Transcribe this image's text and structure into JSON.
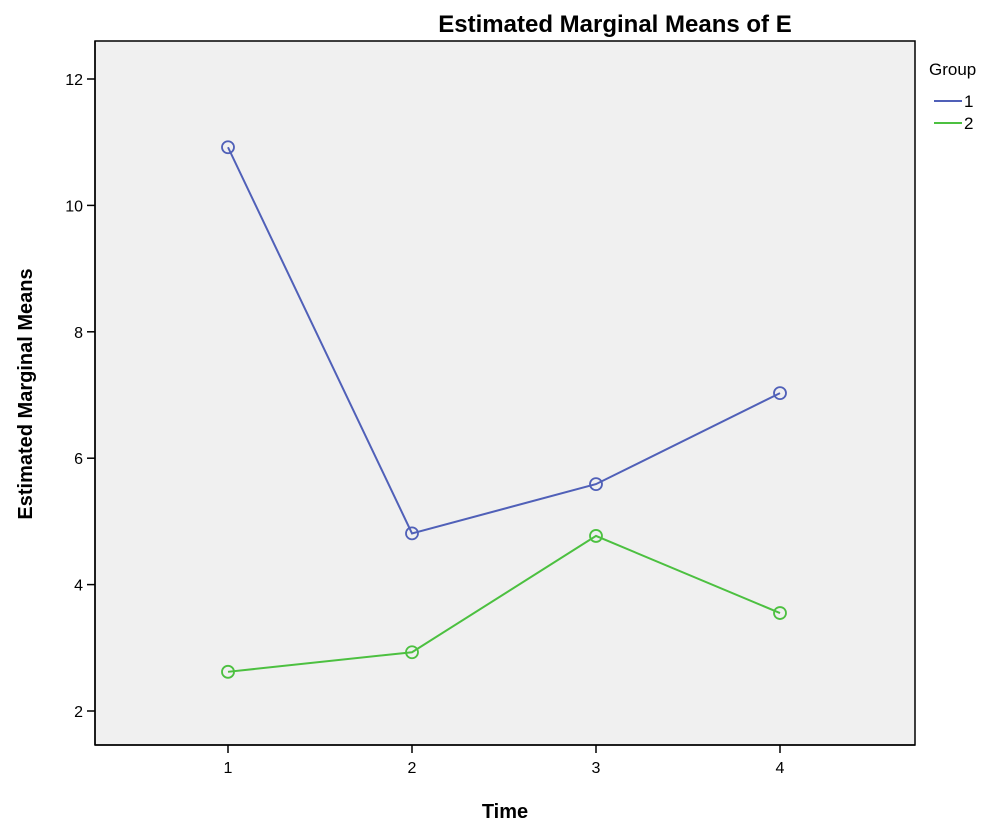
{
  "chart_data": {
    "type": "line",
    "title": "Estimated Marginal Means of E",
    "xlabel": "Time",
    "ylabel": "Estimated Marginal Means",
    "categories": [
      "1",
      "2",
      "3",
      "4"
    ],
    "ylim": [
      1.5,
      12.5
    ],
    "yticks": [
      "2",
      "4",
      "6",
      "8",
      "10",
      "12"
    ],
    "legend": {
      "title": "Group",
      "position": "right"
    },
    "grid": false,
    "series": [
      {
        "name": "1",
        "color": "#5060b8",
        "values": [
          10.92,
          4.81,
          5.59,
          7.03
        ]
      },
      {
        "name": "2",
        "color": "#4cc040",
        "values": [
          2.62,
          2.93,
          4.77,
          3.55
        ]
      }
    ],
    "plot_background": "#f0f0f0"
  }
}
